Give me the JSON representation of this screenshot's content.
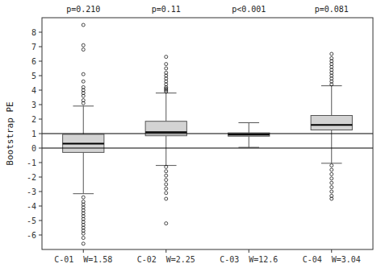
{
  "chart_data": {
    "type": "box",
    "categories": [
      "C-01  W=1.58",
      "C-02  W=2.25",
      "C-03  W=12.6",
      "C-04  W=3.04"
    ],
    "annotations": [
      "p=0.210",
      "p=0.11",
      "p<0.001",
      "p=0.081"
    ],
    "ylabel": "Bootstrap PE",
    "ylim": [
      -7,
      9
    ],
    "yticks": [
      -6,
      -5,
      -4,
      -3,
      -2,
      -1,
      0,
      1,
      2,
      3,
      4,
      5,
      6,
      7,
      8
    ],
    "reference_lines": [
      0,
      1
    ],
    "color": "#d3d3d3",
    "grid": false,
    "boxes": [
      {
        "q1": -0.3,
        "median": 0.3,
        "q3": 0.95,
        "whislo": -3.15,
        "whishi": 2.9,
        "fliers": [
          3.1,
          3.3,
          3.6,
          3.8,
          4.0,
          4.2,
          4.6,
          5.1,
          6.8,
          7.1,
          8.5,
          -3.4,
          -3.7,
          -3.9,
          -4.1,
          -4.3,
          -4.5,
          -4.7,
          -4.9,
          -5.1,
          -5.3,
          -5.5,
          -5.7,
          -5.9,
          -6.2,
          -6.6
        ]
      },
      {
        "q1": 0.85,
        "median": 1.1,
        "q3": 1.85,
        "whislo": -1.2,
        "whishi": 3.8,
        "fliers": [
          3.9,
          4.0,
          4.1,
          4.2,
          4.4,
          4.6,
          4.8,
          5.0,
          5.2,
          5.5,
          5.8,
          6.3,
          -1.3,
          -1.6,
          -1.9,
          -2.2,
          -2.5,
          -2.8,
          -3.1,
          -3.5,
          -5.2
        ]
      },
      {
        "q1": 0.82,
        "median": 0.93,
        "q3": 1.05,
        "whislo": 0.05,
        "whishi": 1.75,
        "fliers": []
      },
      {
        "q1": 1.25,
        "median": 1.6,
        "q3": 2.25,
        "whislo": -1.05,
        "whishi": 4.3,
        "fliers": [
          4.4,
          4.6,
          4.8,
          5.0,
          5.2,
          5.4,
          5.6,
          5.8,
          6.0,
          6.2,
          6.5,
          -1.2,
          -1.5,
          -1.8,
          -2.1,
          -2.4,
          -2.7,
          -3.0,
          -3.3,
          -3.5
        ]
      }
    ]
  }
}
